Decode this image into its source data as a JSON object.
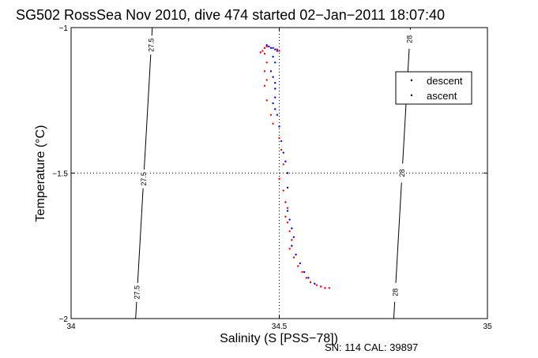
{
  "chart_data": {
    "type": "scatter",
    "title": "SG502 RossSea Nov 2010, dive 474 started 02−Jan−2011 18:07:40",
    "xlabel": "Salinity (S [PSS−78])",
    "ylabel": "Temperature (°C)",
    "xlim": [
      34,
      35
    ],
    "ylim": [
      -2,
      -1
    ],
    "xticks": [
      {
        "value": 34,
        "label": "34"
      },
      {
        "value": 34.5,
        "label": "34.5"
      },
      {
        "value": 35,
        "label": "35"
      }
    ],
    "yticks": [
      {
        "value": -1,
        "label": "−1"
      },
      {
        "value": -1.5,
        "label": "−1.5"
      },
      {
        "value": -2,
        "label": "−2"
      }
    ],
    "grid": "dotted at 34.5 and −1.5",
    "legend_position": "top-right",
    "footer": "SN: 114  CAL: 39897",
    "series": [
      {
        "name": "descent",
        "color": "#0000ff",
        "points": [
          [
            34.47,
            -1.06
          ],
          [
            34.475,
            -1.065
          ],
          [
            34.48,
            -1.07
          ],
          [
            34.485,
            -1.07
          ],
          [
            34.49,
            -1.075
          ],
          [
            34.495,
            -1.08
          ],
          [
            34.485,
            -1.1
          ],
          [
            34.49,
            -1.12
          ],
          [
            34.48,
            -1.15
          ],
          [
            34.485,
            -1.17
          ],
          [
            34.49,
            -1.19
          ],
          [
            34.49,
            -1.21
          ],
          [
            34.49,
            -1.24
          ],
          [
            34.485,
            -1.26
          ],
          [
            34.49,
            -1.28
          ],
          [
            34.495,
            -1.3
          ],
          [
            34.5,
            -1.34
          ],
          [
            34.505,
            -1.39
          ],
          [
            34.51,
            -1.43
          ],
          [
            34.515,
            -1.46
          ],
          [
            34.52,
            -1.5
          ],
          [
            34.52,
            -1.55
          ],
          [
            34.515,
            -1.6
          ],
          [
            34.52,
            -1.63
          ],
          [
            34.525,
            -1.66
          ],
          [
            34.53,
            -1.69
          ],
          [
            34.535,
            -1.72
          ],
          [
            34.53,
            -1.75
          ],
          [
            34.54,
            -1.78
          ],
          [
            34.55,
            -1.81
          ],
          [
            34.56,
            -1.84
          ],
          [
            34.57,
            -1.86
          ],
          [
            34.585,
            -1.88
          ],
          [
            34.6,
            -1.89
          ]
        ]
      },
      {
        "name": "ascent",
        "color": "#ff0000",
        "points": [
          [
            34.47,
            -1.065
          ],
          [
            34.465,
            -1.07
          ],
          [
            34.46,
            -1.08
          ],
          [
            34.455,
            -1.085
          ],
          [
            34.465,
            -1.09
          ],
          [
            34.495,
            -1.075
          ],
          [
            34.5,
            -1.08
          ],
          [
            34.47,
            -1.12
          ],
          [
            34.465,
            -1.15
          ],
          [
            34.47,
            -1.18
          ],
          [
            34.465,
            -1.2
          ],
          [
            34.47,
            -1.25
          ],
          [
            34.48,
            -1.3
          ],
          [
            34.485,
            -1.33
          ],
          [
            34.5,
            -1.38
          ],
          [
            34.505,
            -1.42
          ],
          [
            34.51,
            -1.47
          ],
          [
            34.5,
            -1.52
          ],
          [
            34.51,
            -1.56
          ],
          [
            34.515,
            -1.6
          ],
          [
            34.52,
            -1.62
          ],
          [
            34.515,
            -1.65
          ],
          [
            34.52,
            -1.67
          ],
          [
            34.525,
            -1.7
          ],
          [
            34.53,
            -1.73
          ],
          [
            34.525,
            -1.76
          ],
          [
            34.535,
            -1.79
          ],
          [
            34.545,
            -1.82
          ],
          [
            34.555,
            -1.84
          ],
          [
            34.565,
            -1.86
          ],
          [
            34.575,
            -1.875
          ],
          [
            34.59,
            -1.885
          ],
          [
            34.6,
            -1.89
          ],
          [
            34.61,
            -1.895
          ],
          [
            34.62,
            -1.895
          ]
        ]
      }
    ],
    "contours": [
      {
        "label": "27.5",
        "points": [
          [
            34.195,
            -1
          ],
          [
            34.155,
            -2
          ]
        ],
        "label_at_y": [
          -1.06,
          -1.52,
          -1.91
        ]
      },
      {
        "label": "28",
        "points": [
          [
            34.815,
            -1
          ],
          [
            34.775,
            -2
          ]
        ],
        "label_at_y": [
          -1.04,
          -1.5,
          -1.91
        ]
      }
    ]
  }
}
